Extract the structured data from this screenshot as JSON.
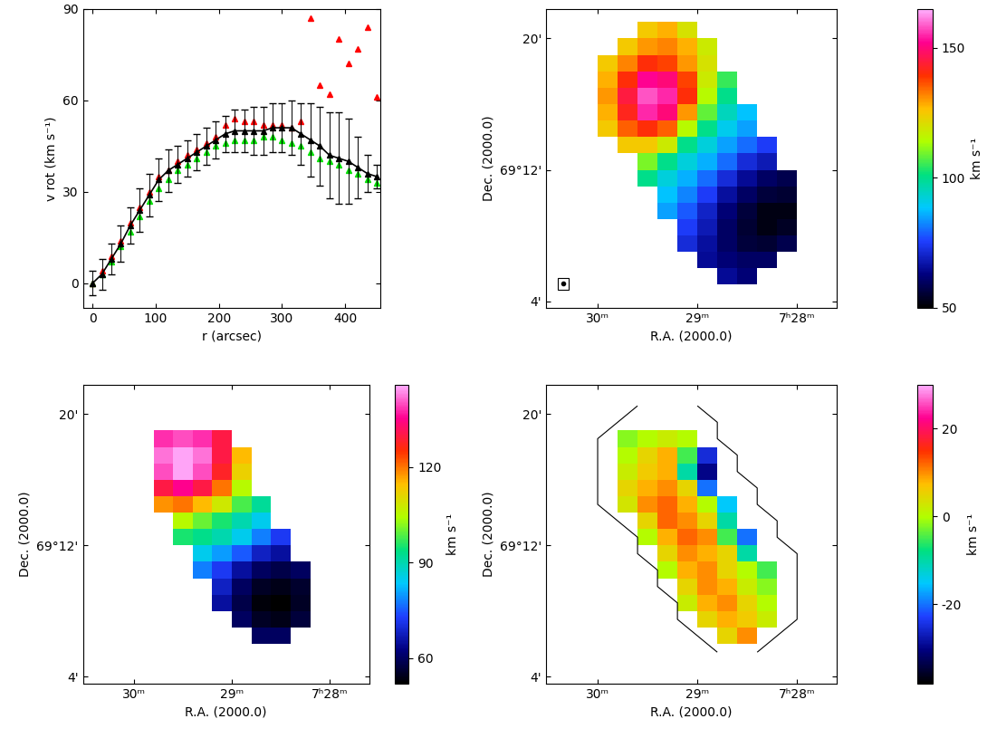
{
  "chart_data": [
    {
      "type": "errorbar",
      "xlabel": "r (arcsec)",
      "ylabel": "v rot (km s⁻¹)",
      "xlim": [
        -15,
        455
      ],
      "ylim": [
        -8,
        90
      ],
      "xticks": [
        0,
        100,
        200,
        300,
        400
      ],
      "yticks": [
        0,
        30,
        60,
        90
      ],
      "x": [
        0,
        15,
        30,
        45,
        60,
        75,
        90,
        105,
        120,
        135,
        150,
        165,
        180,
        195,
        210,
        225,
        240,
        255,
        270,
        285,
        300,
        315,
        330,
        345,
        360,
        375,
        390,
        405,
        420,
        435,
        450
      ],
      "series": [
        {
          "color": "#000000",
          "marker": "triangle",
          "line_style": "solid",
          "values": [
            0,
            3,
            8,
            13,
            19,
            24,
            29,
            34,
            37,
            39,
            41,
            43,
            45,
            47,
            49,
            50,
            50,
            50,
            50,
            51,
            51,
            51,
            49,
            47,
            45,
            42,
            41,
            40,
            38,
            36,
            35
          ],
          "errors": [
            4,
            5,
            5,
            6,
            6,
            7,
            7,
            7,
            7,
            6,
            6,
            6,
            6,
            6,
            6,
            7,
            7,
            8,
            8,
            8,
            8,
            9,
            10,
            12,
            13,
            14,
            15,
            14,
            10,
            6,
            4
          ]
        },
        {
          "color": "#ff0000",
          "marker": "triangle",
          "line_style": "none",
          "values": [
            0,
            4,
            9,
            14,
            20,
            25,
            30,
            35,
            37,
            40,
            42,
            44,
            46,
            48,
            52,
            54,
            53,
            53,
            52,
            52,
            52,
            51,
            53,
            87,
            65,
            62,
            80,
            72,
            77,
            84,
            61
          ]
        },
        {
          "color": "#00dd00",
          "marker": "triangle",
          "line_style": "none",
          "values": [
            0,
            3,
            7,
            12,
            17,
            22,
            27,
            31,
            34,
            37,
            39,
            41,
            43,
            45,
            46,
            47,
            47,
            47,
            48,
            48,
            47,
            46,
            45,
            43,
            41,
            40,
            39,
            37,
            36,
            34,
            33
          ]
        }
      ]
    },
    {
      "type": "heatmap",
      "xlabel": "R.A. (2000.0)",
      "ylabel": "Dec. (2000.0)",
      "xlim": [
        30.52,
        27.6
      ],
      "ylim": [
        3.6,
        21.8
      ],
      "xticks": [
        {
          "value": 30,
          "label": "30ᵐ"
        },
        {
          "value": 29,
          "label": "29ᵐ"
        },
        {
          "value": 28,
          "label": "7ʰ28ᵐ"
        }
      ],
      "yticks": [
        {
          "value": 4,
          "label": "4'"
        },
        {
          "value": 12,
          "label": "69°12'"
        },
        {
          "value": 20,
          "label": "20'"
        }
      ],
      "x_edges": [
        30.2,
        30.0,
        29.8,
        29.6,
        29.4,
        29.2,
        29.0,
        28.8,
        28.6,
        28.4,
        28.2,
        28.0,
        27.8
      ],
      "y_edges": [
        21,
        20,
        19,
        18,
        17,
        16,
        15,
        14,
        13,
        12,
        11,
        10,
        9,
        8,
        7,
        6,
        5
      ],
      "cells": [
        [
          null,
          null,
          null,
          125,
          128,
          120,
          null,
          null,
          null,
          null,
          null,
          null
        ],
        [
          null,
          null,
          125,
          130,
          132,
          128,
          118,
          null,
          null,
          null,
          null,
          null
        ],
        [
          null,
          125,
          132,
          140,
          138,
          130,
          120,
          null,
          null,
          null,
          null,
          null
        ],
        [
          null,
          128,
          140,
          152,
          150,
          138,
          118,
          105,
          null,
          null,
          null,
          null
        ],
        [
          null,
          130,
          145,
          158,
          155,
          140,
          115,
          100,
          null,
          null,
          null,
          null
        ],
        [
          null,
          128,
          142,
          155,
          150,
          130,
          108,
          95,
          88,
          null,
          null,
          null
        ],
        [
          null,
          125,
          135,
          140,
          135,
          115,
          100,
          90,
          85,
          null,
          null,
          null
        ],
        [
          null,
          null,
          125,
          125,
          118,
          100,
          92,
          85,
          80,
          75,
          null,
          null
        ],
        [
          null,
          null,
          null,
          110,
          100,
          92,
          86,
          80,
          72,
          68,
          null,
          null
        ],
        [
          null,
          null,
          null,
          100,
          92,
          86,
          80,
          72,
          65,
          60,
          58,
          null
        ],
        [
          null,
          null,
          null,
          null,
          88,
          82,
          75,
          66,
          60,
          56,
          55,
          null
        ],
        [
          null,
          null,
          null,
          null,
          85,
          78,
          70,
          62,
          56,
          52,
          52,
          null
        ],
        [
          null,
          null,
          null,
          null,
          null,
          75,
          68,
          60,
          55,
          52,
          54,
          null
        ],
        [
          null,
          null,
          null,
          null,
          null,
          72,
          66,
          60,
          56,
          55,
          58,
          null
        ],
        [
          null,
          null,
          null,
          null,
          null,
          null,
          65,
          62,
          60,
          60,
          null,
          null
        ],
        [
          null,
          null,
          null,
          null,
          null,
          null,
          null,
          65,
          62,
          null,
          null,
          null
        ]
      ],
      "colorbar": {
        "range": [
          50,
          165
        ],
        "ticks": [
          50,
          100,
          150
        ],
        "label": "km s⁻¹"
      }
    },
    {
      "type": "heatmap",
      "xlabel": "R.A. (2000.0)",
      "ylabel": "Dec. (2000.0)",
      "xlim": [
        30.52,
        27.6
      ],
      "ylim": [
        3.6,
        21.8
      ],
      "xticks": [
        {
          "value": 30,
          "label": "30ᵐ"
        },
        {
          "value": 29,
          "label": "29ᵐ"
        },
        {
          "value": 28,
          "label": "7ʰ28ᵐ"
        }
      ],
      "yticks": [
        {
          "value": 4,
          "label": "4'"
        },
        {
          "value": 12,
          "label": "69°12'"
        },
        {
          "value": 20,
          "label": "20'"
        }
      ],
      "x_edges": [
        30.2,
        30.0,
        29.8,
        29.6,
        29.4,
        29.2,
        29.0,
        28.8,
        28.6,
        28.4,
        28.2,
        28.0,
        27.8
      ],
      "y_edges": [
        21,
        20,
        19,
        18,
        17,
        16,
        15,
        14,
        13,
        12,
        11,
        10,
        9,
        8,
        7,
        6,
        5
      ],
      "cells": [
        [
          null,
          null,
          null,
          null,
          null,
          null,
          null,
          null,
          null,
          null,
          null,
          null
        ],
        [
          null,
          null,
          null,
          null,
          null,
          null,
          null,
          null,
          null,
          null,
          null,
          null
        ],
        [
          null,
          null,
          138,
          140,
          138,
          130,
          null,
          null,
          null,
          null,
          null,
          null
        ],
        [
          null,
          null,
          142,
          145,
          142,
          130,
          115,
          null,
          null,
          null,
          null,
          null
        ],
        [
          null,
          null,
          140,
          145,
          140,
          128,
          112,
          null,
          null,
          null,
          null,
          null
        ],
        [
          null,
          null,
          130,
          135,
          130,
          120,
          105,
          null,
          null,
          null,
          null,
          null
        ],
        [
          null,
          null,
          118,
          120,
          115,
          108,
          98,
          92,
          null,
          null,
          null,
          null
        ],
        [
          null,
          null,
          null,
          105,
          100,
          95,
          90,
          85,
          null,
          null,
          null,
          null
        ],
        [
          null,
          null,
          null,
          95,
          93,
          90,
          85,
          78,
          72,
          null,
          null,
          null
        ],
        [
          null,
          null,
          null,
          null,
          85,
          80,
          75,
          68,
          65,
          null,
          null,
          null
        ],
        [
          null,
          null,
          null,
          null,
          78,
          72,
          65,
          60,
          58,
          60,
          null,
          null
        ],
        [
          null,
          null,
          null,
          null,
          null,
          68,
          60,
          55,
          54,
          56,
          null,
          null
        ],
        [
          null,
          null,
          null,
          null,
          null,
          65,
          58,
          53,
          52,
          55,
          null,
          null
        ],
        [
          null,
          null,
          null,
          null,
          null,
          null,
          60,
          55,
          54,
          57,
          null,
          null
        ],
        [
          null,
          null,
          null,
          null,
          null,
          null,
          null,
          60,
          60,
          null,
          null,
          null
        ],
        [
          null,
          null,
          null,
          null,
          null,
          null,
          null,
          null,
          null,
          null,
          null,
          null
        ]
      ],
      "colorbar": {
        "range": [
          52,
          146
        ],
        "ticks": [
          60,
          90,
          120
        ],
        "label": "km s⁻¹"
      }
    },
    {
      "type": "heatmap",
      "xlabel": "R.A. (2000.0)",
      "ylabel": "Dec. (2000.0)",
      "xlim": [
        30.52,
        27.6
      ],
      "ylim": [
        3.6,
        21.8
      ],
      "xticks": [
        {
          "value": 30,
          "label": "30ᵐ"
        },
        {
          "value": 29,
          "label": "29ᵐ"
        },
        {
          "value": 28,
          "label": "7ʰ28ᵐ"
        }
      ],
      "yticks": [
        {
          "value": 4,
          "label": "4'"
        },
        {
          "value": 12,
          "label": "69°12'"
        },
        {
          "value": 20,
          "label": "20'"
        }
      ],
      "x_edges": [
        30.2,
        30.0,
        29.8,
        29.6,
        29.4,
        29.2,
        29.0,
        28.8,
        28.6,
        28.4,
        28.2,
        28.0,
        27.8
      ],
      "y_edges": [
        21,
        20,
        19,
        18,
        17,
        16,
        15,
        14,
        13,
        12,
        11,
        10,
        9,
        8,
        7,
        6,
        5
      ],
      "cells": [
        [
          null,
          null,
          null,
          null,
          null,
          null,
          null,
          null,
          null,
          null,
          null,
          null
        ],
        [
          null,
          null,
          null,
          null,
          null,
          null,
          null,
          null,
          null,
          null,
          null,
          null
        ],
        [
          null,
          null,
          -2,
          0,
          2,
          0,
          null,
          null,
          null,
          null,
          null,
          null
        ],
        [
          null,
          null,
          0,
          5,
          8,
          -5,
          -25,
          null,
          null,
          null,
          null,
          null
        ],
        [
          null,
          null,
          2,
          6,
          8,
          -10,
          -30,
          null,
          null,
          null,
          null,
          null
        ],
        [
          null,
          null,
          5,
          8,
          10,
          5,
          -20,
          null,
          null,
          null,
          null,
          null
        ],
        [
          null,
          null,
          3,
          10,
          12,
          8,
          0,
          -15,
          null,
          null,
          null,
          null
        ],
        [
          null,
          null,
          null,
          5,
          12,
          10,
          5,
          -10,
          null,
          null,
          null,
          null
        ],
        [
          null,
          null,
          null,
          0,
          8,
          12,
          10,
          -5,
          -20,
          null,
          null,
          null
        ],
        [
          null,
          null,
          null,
          null,
          5,
          10,
          8,
          5,
          -10,
          null,
          null,
          null
        ],
        [
          null,
          null,
          null,
          null,
          0,
          8,
          10,
          5,
          0,
          -5,
          null,
          null
        ],
        [
          null,
          null,
          null,
          null,
          null,
          5,
          10,
          8,
          2,
          -2,
          null,
          null
        ],
        [
          null,
          null,
          null,
          null,
          null,
          2,
          8,
          10,
          5,
          0,
          null,
          null
        ],
        [
          null,
          null,
          null,
          null,
          null,
          null,
          5,
          8,
          6,
          2,
          null,
          null
        ],
        [
          null,
          null,
          null,
          null,
          null,
          null,
          null,
          5,
          10,
          null,
          null,
          null
        ],
        [
          null,
          null,
          null,
          null,
          null,
          null,
          null,
          null,
          null,
          null,
          null,
          null
        ]
      ],
      "colorbar": {
        "range": [
          -38,
          30
        ],
        "ticks": [
          -20,
          0,
          20
        ],
        "label": "km s⁻¹"
      }
    }
  ]
}
